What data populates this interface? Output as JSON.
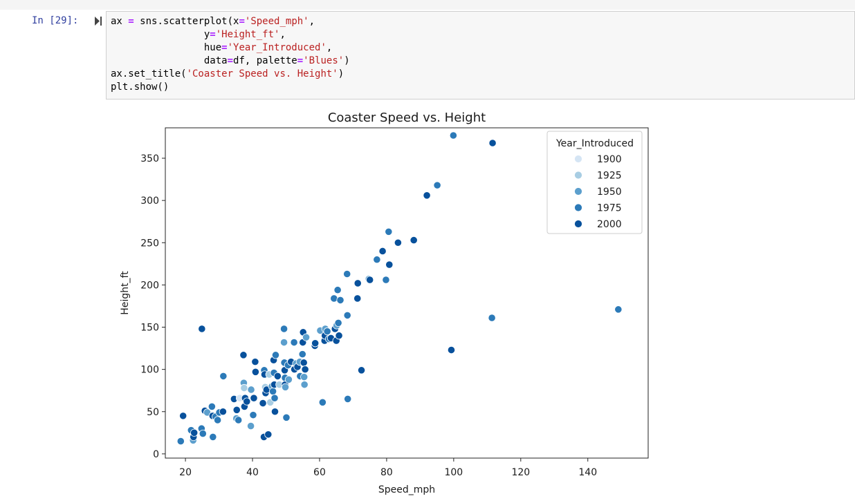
{
  "cell": {
    "prompt": "In [29]:",
    "code": {
      "l1_a": "ax ",
      "l1_op": "=",
      "l1_b": " sns.scatterplot(x",
      "l1_op2": "=",
      "l1_str": "'Speed_mph'",
      "l1_c": ",",
      "l2_indent": "                y",
      "l2_op": "=",
      "l2_str": "'Height_ft'",
      "l2_c": ",",
      "l3_indent": "                hue",
      "l3_op": "=",
      "l3_str": "'Year_Introduced'",
      "l3_c": ",",
      "l4_indent": "                data",
      "l4_op": "=",
      "l4_b": "df, palette",
      "l4_op2": "=",
      "l4_str": "'Blues'",
      "l4_c": ")",
      "l5_a": "ax.set_title(",
      "l5_str": "'Coaster Speed vs. Height'",
      "l5_c": ")",
      "l6": "plt.show()"
    }
  },
  "chart_data": {
    "type": "scatter",
    "title": "Coaster Speed vs. Height",
    "xlabel": "Speed_mph",
    "ylabel": "Height_ft",
    "xlim": [
      14,
      158
    ],
    "ylim": [
      -5,
      386
    ],
    "xticks": [
      20,
      40,
      60,
      80,
      100,
      120,
      140
    ],
    "yticks": [
      0,
      50,
      100,
      150,
      200,
      250,
      300,
      350
    ],
    "grid": false,
    "legend": {
      "title": "Year_Introduced",
      "placement": "upper-right",
      "entries": [
        {
          "label": "1900",
          "color": "#d5e5f4"
        },
        {
          "label": "1925",
          "color": "#a8cde3"
        },
        {
          "label": "1950",
          "color": "#5c9fcd"
        },
        {
          "label": "1975",
          "color": "#2c7ab8"
        },
        {
          "label": "2000",
          "color": "#08519c"
        }
      ]
    },
    "points": [
      {
        "x": 18.6,
        "y": 15,
        "c": "1975"
      },
      {
        "x": 19.3,
        "y": 45,
        "c": "2000"
      },
      {
        "x": 21.7,
        "y": 28,
        "c": "1975"
      },
      {
        "x": 22.3,
        "y": 16,
        "c": "1950"
      },
      {
        "x": 22.4,
        "y": 20,
        "c": "2000"
      },
      {
        "x": 22.6,
        "y": 25,
        "c": "2000"
      },
      {
        "x": 24.8,
        "y": 30,
        "c": "1975"
      },
      {
        "x": 24.9,
        "y": 148,
        "c": "2000"
      },
      {
        "x": 25.2,
        "y": 24,
        "c": "1975"
      },
      {
        "x": 25.8,
        "y": 51,
        "c": "2000"
      },
      {
        "x": 26.5,
        "y": 49,
        "c": "1950"
      },
      {
        "x": 27.9,
        "y": 56,
        "c": "1975"
      },
      {
        "x": 28.1,
        "y": 45,
        "c": "2000"
      },
      {
        "x": 28.2,
        "y": 20,
        "c": "1975"
      },
      {
        "x": 29.0,
        "y": 44,
        "c": "1975"
      },
      {
        "x": 29.6,
        "y": 40,
        "c": "1975"
      },
      {
        "x": 30.1,
        "y": 49,
        "c": "1975"
      },
      {
        "x": 31.2,
        "y": 50,
        "c": "2000"
      },
      {
        "x": 31.3,
        "y": 92,
        "c": "1975"
      },
      {
        "x": 34.5,
        "y": 65,
        "c": "2000"
      },
      {
        "x": 35.2,
        "y": 42,
        "c": "1950"
      },
      {
        "x": 35.3,
        "y": 52,
        "c": "2000"
      },
      {
        "x": 35.8,
        "y": 40,
        "c": "1975"
      },
      {
        "x": 36.2,
        "y": 66,
        "c": "1900"
      },
      {
        "x": 37.3,
        "y": 117,
        "c": "2000"
      },
      {
        "x": 37.4,
        "y": 84,
        "c": "1950"
      },
      {
        "x": 37.5,
        "y": 78,
        "c": "1925"
      },
      {
        "x": 37.6,
        "y": 56,
        "c": "2000"
      },
      {
        "x": 37.8,
        "y": 66,
        "c": "2000"
      },
      {
        "x": 38.3,
        "y": 62,
        "c": "2000"
      },
      {
        "x": 39.5,
        "y": 33,
        "c": "1950"
      },
      {
        "x": 39.6,
        "y": 76,
        "c": "1950"
      },
      {
        "x": 40.2,
        "y": 46,
        "c": "1975"
      },
      {
        "x": 40.4,
        "y": 66,
        "c": "2000"
      },
      {
        "x": 40.8,
        "y": 109,
        "c": "2000"
      },
      {
        "x": 40.9,
        "y": 97,
        "c": "2000"
      },
      {
        "x": 43.1,
        "y": 60,
        "c": "2000"
      },
      {
        "x": 43.4,
        "y": 20,
        "c": "2000"
      },
      {
        "x": 43.5,
        "y": 99,
        "c": "1975"
      },
      {
        "x": 43.6,
        "y": 94,
        "c": "2000"
      },
      {
        "x": 43.8,
        "y": 79,
        "c": "1925"
      },
      {
        "x": 43.9,
        "y": 72,
        "c": "2000"
      },
      {
        "x": 44.2,
        "y": 76,
        "c": "2000"
      },
      {
        "x": 44.7,
        "y": 23,
        "c": "2000"
      },
      {
        "x": 45.0,
        "y": 94,
        "c": "1925"
      },
      {
        "x": 45.3,
        "y": 61,
        "c": "1925"
      },
      {
        "x": 45.8,
        "y": 80,
        "c": "1950"
      },
      {
        "x": 46.1,
        "y": 74,
        "c": "1975"
      },
      {
        "x": 46.3,
        "y": 111,
        "c": "2000"
      },
      {
        "x": 46.4,
        "y": 96,
        "c": "1975"
      },
      {
        "x": 46.5,
        "y": 82,
        "c": "2000"
      },
      {
        "x": 46.6,
        "y": 66,
        "c": "1975"
      },
      {
        "x": 46.7,
        "y": 50,
        "c": "2000"
      },
      {
        "x": 46.9,
        "y": 117,
        "c": "1975"
      },
      {
        "x": 47.5,
        "y": 92,
        "c": "2000"
      },
      {
        "x": 48.0,
        "y": 82,
        "c": "1925"
      },
      {
        "x": 49.4,
        "y": 148,
        "c": "1975"
      },
      {
        "x": 49.4,
        "y": 132,
        "c": "1950"
      },
      {
        "x": 49.5,
        "y": 108,
        "c": "1975"
      },
      {
        "x": 49.6,
        "y": 99,
        "c": "2000"
      },
      {
        "x": 49.7,
        "y": 90,
        "c": "1975"
      },
      {
        "x": 49.7,
        "y": 82,
        "c": "2000"
      },
      {
        "x": 49.8,
        "y": 79,
        "c": "1950"
      },
      {
        "x": 50.1,
        "y": 43,
        "c": "1975"
      },
      {
        "x": 50.6,
        "y": 105,
        "c": "1975"
      },
      {
        "x": 50.8,
        "y": 88,
        "c": "1950"
      },
      {
        "x": 51.5,
        "y": 109,
        "c": "2000"
      },
      {
        "x": 52.4,
        "y": 132,
        "c": "1975"
      },
      {
        "x": 52.5,
        "y": 100,
        "c": "2000"
      },
      {
        "x": 53.0,
        "y": 107,
        "c": "1950"
      },
      {
        "x": 53.4,
        "y": 103,
        "c": "2000"
      },
      {
        "x": 54.1,
        "y": 109,
        "c": "1950"
      },
      {
        "x": 54.2,
        "y": 92,
        "c": "1975"
      },
      {
        "x": 54.9,
        "y": 118,
        "c": "1975"
      },
      {
        "x": 55.0,
        "y": 132,
        "c": "2000"
      },
      {
        "x": 55.1,
        "y": 144,
        "c": "2000"
      },
      {
        "x": 55.3,
        "y": 108,
        "c": "2000"
      },
      {
        "x": 55.4,
        "y": 91,
        "c": "1950"
      },
      {
        "x": 55.5,
        "y": 82,
        "c": "1950"
      },
      {
        "x": 55.7,
        "y": 100,
        "c": "2000"
      },
      {
        "x": 56.0,
        "y": 138,
        "c": "1950"
      },
      {
        "x": 58.6,
        "y": 128,
        "c": "2000"
      },
      {
        "x": 58.7,
        "y": 131,
        "c": "2000"
      },
      {
        "x": 60.2,
        "y": 146,
        "c": "1950"
      },
      {
        "x": 60.9,
        "y": 61,
        "c": "1975"
      },
      {
        "x": 61.5,
        "y": 134,
        "c": "2000"
      },
      {
        "x": 61.6,
        "y": 140,
        "c": "2000"
      },
      {
        "x": 61.7,
        "y": 148,
        "c": "1950"
      },
      {
        "x": 62.3,
        "y": 145,
        "c": "1975"
      },
      {
        "x": 62.8,
        "y": 136,
        "c": "1975"
      },
      {
        "x": 63.4,
        "y": 137,
        "c": "2000"
      },
      {
        "x": 64.3,
        "y": 184,
        "c": "1975"
      },
      {
        "x": 64.6,
        "y": 148,
        "c": "2000"
      },
      {
        "x": 65.0,
        "y": 134,
        "c": "2000"
      },
      {
        "x": 65.1,
        "y": 152,
        "c": "1950"
      },
      {
        "x": 65.4,
        "y": 194,
        "c": "1975"
      },
      {
        "x": 65.6,
        "y": 155,
        "c": "1975"
      },
      {
        "x": 65.8,
        "y": 140,
        "c": "2000"
      },
      {
        "x": 66.2,
        "y": 182,
        "c": "1975"
      },
      {
        "x": 68.2,
        "y": 213,
        "c": "1975"
      },
      {
        "x": 68.3,
        "y": 164,
        "c": "1975"
      },
      {
        "x": 68.4,
        "y": 65,
        "c": "1975"
      },
      {
        "x": 71.3,
        "y": 184,
        "c": "2000"
      },
      {
        "x": 71.4,
        "y": 202,
        "c": "2000"
      },
      {
        "x": 72.5,
        "y": 99,
        "c": "2000"
      },
      {
        "x": 74.7,
        "y": 207,
        "c": "1950"
      },
      {
        "x": 75.0,
        "y": 206,
        "c": "2000"
      },
      {
        "x": 77.1,
        "y": 230,
        "c": "1975"
      },
      {
        "x": 78.8,
        "y": 240,
        "c": "2000"
      },
      {
        "x": 79.8,
        "y": 206,
        "c": "1975"
      },
      {
        "x": 80.6,
        "y": 263,
        "c": "1975"
      },
      {
        "x": 80.8,
        "y": 224,
        "c": "2000"
      },
      {
        "x": 83.4,
        "y": 250,
        "c": "2000"
      },
      {
        "x": 88.1,
        "y": 253,
        "c": "2000"
      },
      {
        "x": 92.0,
        "y": 306,
        "c": "2000"
      },
      {
        "x": 95.1,
        "y": 318,
        "c": "1975"
      },
      {
        "x": 99.3,
        "y": 123,
        "c": "2000"
      },
      {
        "x": 99.9,
        "y": 377,
        "c": "1975"
      },
      {
        "x": 111.4,
        "y": 161,
        "c": "1975"
      },
      {
        "x": 111.6,
        "y": 368,
        "c": "2000"
      },
      {
        "x": 149.1,
        "y": 171,
        "c": "1975"
      }
    ]
  }
}
